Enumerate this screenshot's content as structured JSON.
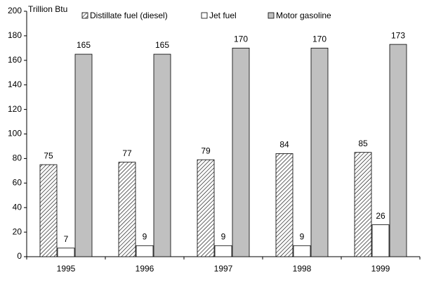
{
  "chart_data": {
    "type": "bar",
    "y_axis_label": "Trillion Btu",
    "categories": [
      "1995",
      "1996",
      "1997",
      "1998",
      "1999"
    ],
    "series": [
      {
        "name": "Distillate fuel (diesel)",
        "color": "#000000",
        "pattern": "hatch",
        "values": [
          75,
          77,
          79,
          84,
          85
        ]
      },
      {
        "name": "Jet fuel",
        "color": "#ffffff",
        "values": [
          7,
          9,
          9,
          9,
          26
        ]
      },
      {
        "name": "Motor gasoline",
        "color": "#c0c0c0",
        "values": [
          165,
          165,
          170,
          170,
          173
        ]
      }
    ],
    "ylim": [
      0,
      200
    ],
    "yticks": [
      0,
      20,
      40,
      60,
      80,
      100,
      120,
      140,
      160,
      180,
      200
    ],
    "grid": false,
    "legend": "top"
  }
}
